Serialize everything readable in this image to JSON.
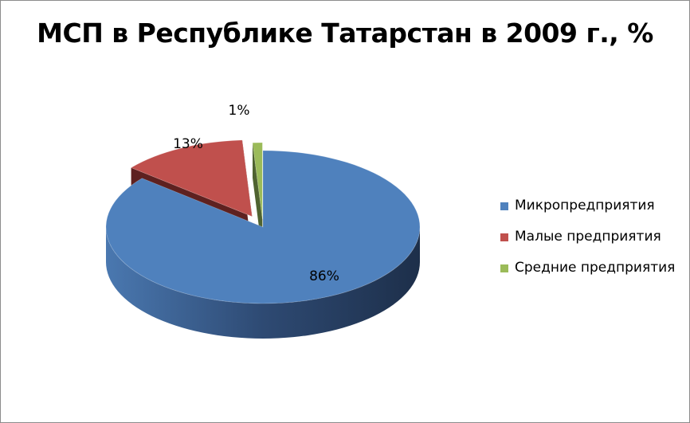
{
  "chart_data": {
    "type": "pie",
    "title": "МСП в Республике Татарстан в 2009 г., %",
    "categories": [
      "Микропредприятия",
      "Малые предприятия",
      "Средние предприятия"
    ],
    "values": [
      86,
      13,
      1
    ],
    "value_labels": [
      "86%",
      "13%",
      "1%"
    ],
    "colors": [
      "#4f81bd",
      "#c0504d",
      "#9bbb59"
    ],
    "legend_position": "right",
    "style": "3d-exploded"
  }
}
